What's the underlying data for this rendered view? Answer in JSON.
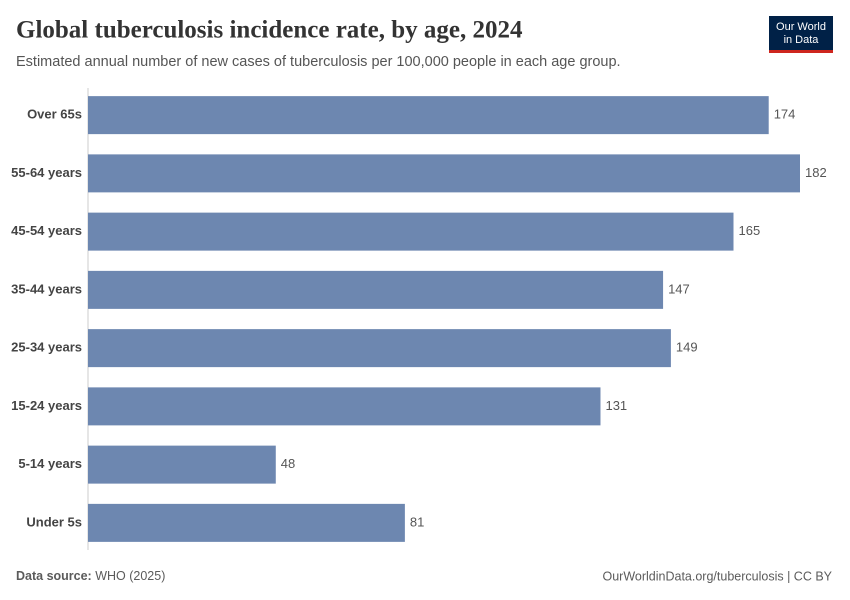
{
  "chart_data": {
    "type": "bar",
    "orientation": "horizontal",
    "title": "Global tuberculosis incidence rate, by age, 2024",
    "subtitle": "Estimated annual number of new cases of tuberculosis per 100,000 people in each age group.",
    "categories": [
      "Over 65s",
      "55-64 years",
      "45-54 years",
      "35-44 years",
      "25-34 years",
      "15-24 years",
      "5-14 years",
      "Under 5s"
    ],
    "values": [
      174,
      182,
      165,
      147,
      149,
      131,
      48,
      81
    ],
    "color": "#6d87b0",
    "source_label": "Data source:",
    "source": "WHO (2025)",
    "url": "OurWorldinData.org/tuberculosis | CC BY",
    "logo": [
      "Our World",
      "in Data"
    ]
  }
}
